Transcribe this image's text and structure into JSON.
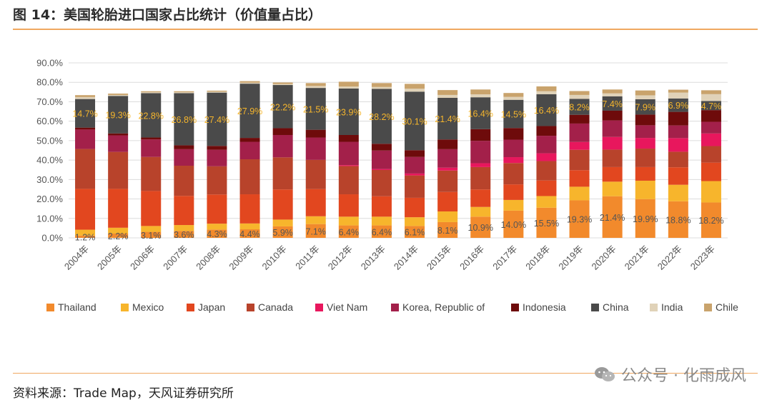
{
  "header": {
    "title": "图 14：美国轮胎进口国家占比统计（价值量占比）"
  },
  "footer": {
    "source": "资料来源：Trade Map，天风证券研究所",
    "watermark": "公众号 · 化雨成风"
  },
  "colors": {
    "Thailand": "#f28a2c",
    "Mexico": "#f7b52c",
    "Japan": "#e2471f",
    "Canada": "#b8432b",
    "Viet Nam": "#e8175d",
    "Korea, Republic of": "#a3204a",
    "Indonesia": "#6e0b0b",
    "China": "#4a4a4a",
    "India": "#e0d2b8",
    "Chile": "#c9a36c",
    "accent_rule": "#f0a860",
    "grid": "#dcdcdc",
    "label_dark": "#555555",
    "label_light": "#f5b52c"
  },
  "chart_data": {
    "type": "bar",
    "stacked": true,
    "title": "",
    "xlabel": "",
    "ylabel": "",
    "ylim": [
      0,
      90
    ],
    "yticks": [
      "0.0%",
      "10.0%",
      "20.0%",
      "30.0%",
      "40.0%",
      "50.0%",
      "60.0%",
      "70.0%",
      "80.0%",
      "90.0%"
    ],
    "grid": true,
    "legend_position": "bottom",
    "categories": [
      "2004年",
      "2005年",
      "2006年",
      "2007年",
      "2008年",
      "2009年",
      "2010年",
      "2011年",
      "2012年",
      "2013年",
      "2014年",
      "2015年",
      "2016年",
      "2017年",
      "2018年",
      "2019年",
      "2020年",
      "2021年",
      "2022年",
      "2023年"
    ],
    "series": [
      {
        "name": "Thailand",
        "values": [
          1.2,
          2.2,
          3.1,
          3.6,
          4.3,
          4.4,
          5.9,
          7.1,
          6.4,
          6.4,
          6.1,
          8.1,
          10.9,
          14.0,
          15.5,
          19.3,
          21.4,
          19.9,
          18.8,
          18.2
        ]
      },
      {
        "name": "Mexico",
        "values": [
          3,
          3,
          3,
          3,
          3,
          3,
          3.5,
          4,
          4.5,
          4.5,
          4.5,
          5.5,
          5,
          5.5,
          6,
          7,
          7.5,
          9.5,
          8.5,
          11
        ]
      },
      {
        "name": "Japan",
        "values": [
          21,
          20,
          18,
          15,
          15,
          15,
          15.5,
          14,
          11.5,
          10.5,
          10,
          10,
          9,
          8,
          8,
          8.5,
          7.5,
          7,
          9,
          9.5
        ]
      },
      {
        "name": "Canada",
        "values": [
          20.5,
          19,
          17.5,
          15.5,
          14.5,
          18,
          16.5,
          15,
          14.5,
          13.5,
          11.5,
          11,
          11.5,
          11,
          10,
          10.5,
          9,
          9.5,
          8,
          8.5
        ]
      },
      {
        "name": "Viet Nam",
        "values": [
          0,
          0,
          0,
          0,
          0,
          0,
          0,
          0,
          0.5,
          0.5,
          1,
          1.5,
          2,
          3,
          4,
          4,
          6.5,
          5.5,
          7,
          6.5
        ]
      },
      {
        "name": "Korea, Republic of",
        "values": [
          10,
          8.5,
          9,
          8.5,
          8.5,
          9,
          11.5,
          11.5,
          12,
          9.5,
          8.5,
          9.5,
          11.5,
          9,
          9,
          9.5,
          8.5,
          6.5,
          6.5,
          6
        ]
      },
      {
        "name": "Indonesia",
        "values": [
          1,
          1,
          1,
          2,
          2,
          2,
          3.5,
          4,
          3.5,
          3.5,
          3.5,
          5,
          6,
          6,
          5,
          4.5,
          5,
          5.5,
          7,
          6
        ]
      },
      {
        "name": "China",
        "values": [
          14.7,
          19.3,
          22.8,
          26.8,
          27.4,
          27.9,
          22.2,
          21.5,
          23.9,
          28.2,
          30.1,
          21.4,
          16.4,
          14.5,
          16.4,
          8.2,
          7.4,
          7.9,
          6.9,
          4.7
        ]
      },
      {
        "name": "India",
        "values": [
          1,
          0.5,
          0.5,
          0.5,
          0.5,
          0.5,
          0.5,
          1,
          1,
          1,
          1.5,
          1.5,
          1.5,
          1.5,
          1.5,
          2,
          1.5,
          2,
          3,
          3.5
        ]
      },
      {
        "name": "Chile",
        "values": [
          1,
          0.7,
          0.5,
          0.5,
          0.5,
          0.8,
          0.8,
          1.5,
          2.5,
          2,
          2.5,
          2.5,
          2.5,
          2,
          2.5,
          2,
          2,
          2.5,
          1.5,
          2
        ]
      }
    ],
    "data_labels": {
      "Thailand": [
        "1.2%",
        "2.2%",
        "3.1%",
        "3.6%",
        "4.3%",
        "4.4%",
        "5.9%",
        "7.1%",
        "6.4%",
        "6.4%",
        "6.1%",
        "8.1%",
        "10.9%",
        "14.0%",
        "15.5%",
        "19.3%",
        "21.4%",
        "19.9%",
        "18.8%",
        "18.2%"
      ],
      "China": [
        "14.7%",
        "19.3%",
        "22.8%",
        "26.8%",
        "27.4%",
        "27.9%",
        "22.2%",
        "21.5%",
        "23.9%",
        "28.2%",
        "30.1%",
        "21.4%",
        "16.4%",
        "14.5%",
        "16.4%",
        "8.2%",
        "7.4%",
        "7.9%",
        "6.9%",
        "4.7%"
      ]
    }
  }
}
